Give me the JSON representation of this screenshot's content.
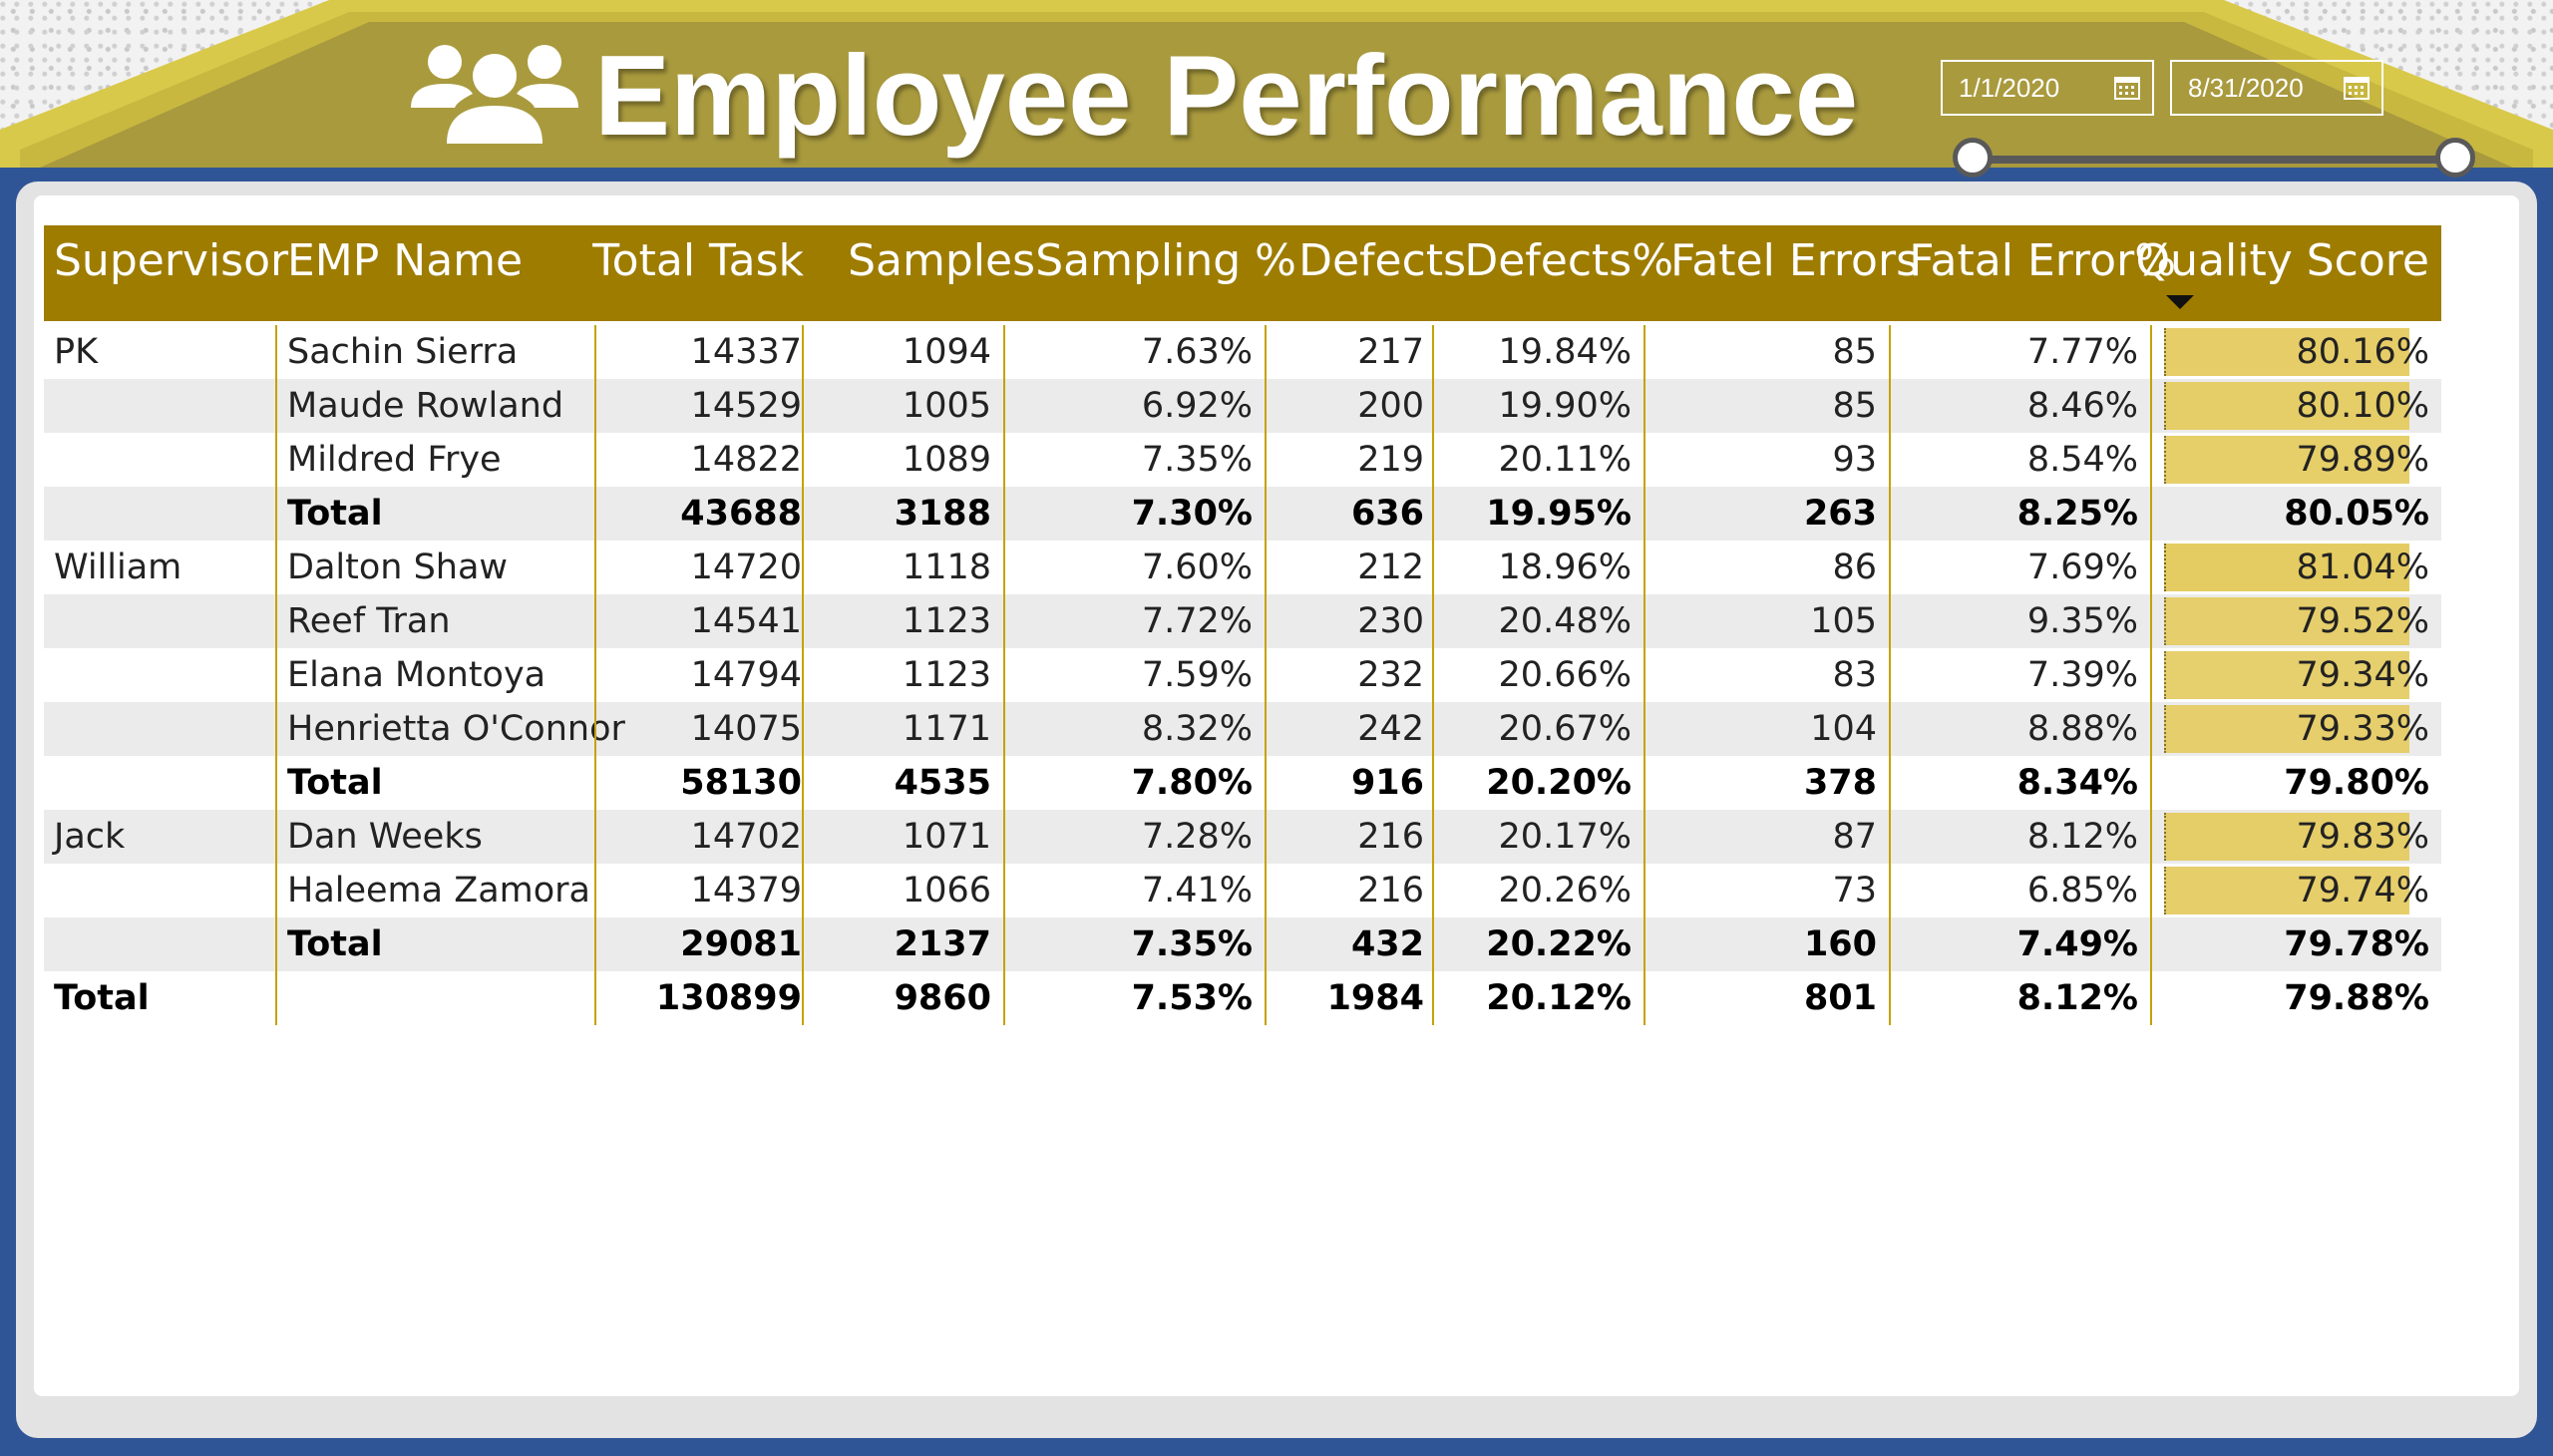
{
  "header": {
    "title": "Employee Performance",
    "start_date": "1/1/2020",
    "end_date": "8/31/2020",
    "icons": {
      "title": "people-group-icon",
      "date": "calendar-icon"
    }
  },
  "colors": {
    "banner_dark": "#a99a3e",
    "banner_light": "#d9c94a",
    "frame": "#2f5597",
    "header_bg": "#9e7c00",
    "quality_bar": "#e5cc62",
    "row_shade": "#ebebeb"
  },
  "table": {
    "columns": [
      "Supervisor",
      "EMP Name",
      "Total Task",
      "Samples",
      "Sampling %",
      "Defects",
      "Defects%",
      "Fatel Errors",
      "Fatal Error%",
      "Quality Score"
    ],
    "sorted_column": "Quality Score",
    "rows": [
      {
        "supervisor": "PK",
        "name": "Sachin Sierra",
        "total_task": "14337",
        "samples": "1094",
        "sampling_pct": "7.63%",
        "defects": "217",
        "defects_pct": "19.84%",
        "fatal_errors": "85",
        "fatal_error_pct": "7.77%",
        "quality": "80.16%",
        "quality_value": 80.16
      },
      {
        "supervisor": "",
        "name": "Maude Rowland",
        "total_task": "14529",
        "samples": "1005",
        "sampling_pct": "6.92%",
        "defects": "200",
        "defects_pct": "19.90%",
        "fatal_errors": "85",
        "fatal_error_pct": "8.46%",
        "quality": "80.10%",
        "quality_value": 80.1
      },
      {
        "supervisor": "",
        "name": "Mildred Frye",
        "total_task": "14822",
        "samples": "1089",
        "sampling_pct": "7.35%",
        "defects": "219",
        "defects_pct": "20.11%",
        "fatal_errors": "93",
        "fatal_error_pct": "8.54%",
        "quality": "79.89%",
        "quality_value": 79.89
      },
      {
        "supervisor": "",
        "name": "Total",
        "total_task": "43688",
        "samples": "3188",
        "sampling_pct": "7.30%",
        "defects": "636",
        "defects_pct": "19.95%",
        "fatal_errors": "263",
        "fatal_error_pct": "8.25%",
        "quality": "80.05%",
        "subtotal": true
      },
      {
        "supervisor": "William",
        "name": "Dalton Shaw",
        "total_task": "14720",
        "samples": "1118",
        "sampling_pct": "7.60%",
        "defects": "212",
        "defects_pct": "18.96%",
        "fatal_errors": "86",
        "fatal_error_pct": "7.69%",
        "quality": "81.04%",
        "quality_value": 81.04
      },
      {
        "supervisor": "",
        "name": "Reef Tran",
        "total_task": "14541",
        "samples": "1123",
        "sampling_pct": "7.72%",
        "defects": "230",
        "defects_pct": "20.48%",
        "fatal_errors": "105",
        "fatal_error_pct": "9.35%",
        "quality": "79.52%",
        "quality_value": 79.52
      },
      {
        "supervisor": "",
        "name": "Elana Montoya",
        "total_task": "14794",
        "samples": "1123",
        "sampling_pct": "7.59%",
        "defects": "232",
        "defects_pct": "20.66%",
        "fatal_errors": "83",
        "fatal_error_pct": "7.39%",
        "quality": "79.34%",
        "quality_value": 79.34
      },
      {
        "supervisor": "",
        "name": "Henrietta O'Connor",
        "total_task": "14075",
        "samples": "1171",
        "sampling_pct": "8.32%",
        "defects": "242",
        "defects_pct": "20.67%",
        "fatal_errors": "104",
        "fatal_error_pct": "8.88%",
        "quality": "79.33%",
        "quality_value": 79.33
      },
      {
        "supervisor": "",
        "name": "Total",
        "total_task": "58130",
        "samples": "4535",
        "sampling_pct": "7.80%",
        "defects": "916",
        "defects_pct": "20.20%",
        "fatal_errors": "378",
        "fatal_error_pct": "8.34%",
        "quality": "79.80%",
        "subtotal": true
      },
      {
        "supervisor": "Jack",
        "name": "Dan Weeks",
        "total_task": "14702",
        "samples": "1071",
        "sampling_pct": "7.28%",
        "defects": "216",
        "defects_pct": "20.17%",
        "fatal_errors": "87",
        "fatal_error_pct": "8.12%",
        "quality": "79.83%",
        "quality_value": 79.83
      },
      {
        "supervisor": "",
        "name": "Haleema Zamora",
        "total_task": "14379",
        "samples": "1066",
        "sampling_pct": "7.41%",
        "defects": "216",
        "defects_pct": "20.26%",
        "fatal_errors": "73",
        "fatal_error_pct": "6.85%",
        "quality": "79.74%",
        "quality_value": 79.74
      },
      {
        "supervisor": "",
        "name": "Total",
        "total_task": "29081",
        "samples": "2137",
        "sampling_pct": "7.35%",
        "defects": "432",
        "defects_pct": "20.22%",
        "fatal_errors": "160",
        "fatal_error_pct": "7.49%",
        "quality": "79.78%",
        "subtotal": true
      }
    ],
    "grand_total": {
      "label": "Total",
      "total_task": "130899",
      "samples": "9860",
      "sampling_pct": "7.53%",
      "defects": "1984",
      "defects_pct": "20.12%",
      "fatal_errors": "801",
      "fatal_error_pct": "8.12%",
      "quality": "79.88%"
    }
  }
}
